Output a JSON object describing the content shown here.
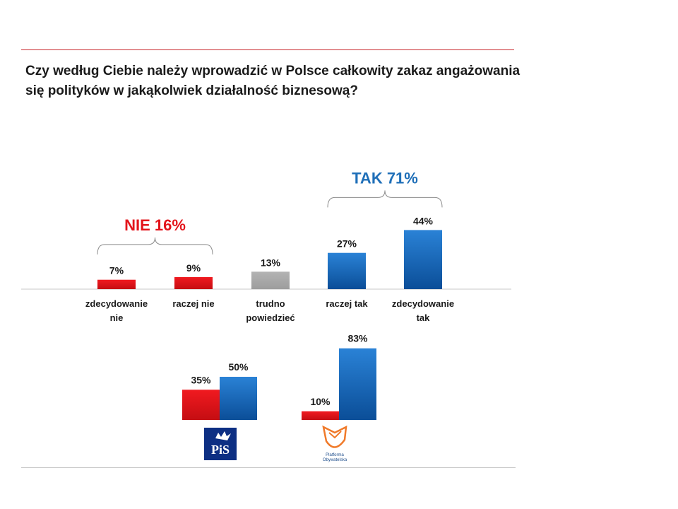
{
  "question": {
    "line1": "Czy według Ciebie należy wprowadzić w Polsce całkowity zakaz angażowania",
    "line2": "się polityków w jakąkolwiek działalność biznesową?"
  },
  "colors": {
    "red": "#e8141b",
    "red_dark": "#c50d12",
    "gray": "#a6a6a6",
    "blue": "#1f73c6",
    "blue_dark": "#0a4f9c",
    "rule_red": "#c9292e",
    "nie_text": "#e3141b",
    "tak_text": "#1f6fb8"
  },
  "chart_data": [
    {
      "type": "bar",
      "categories": [
        "zdecydowanie nie",
        "raczej nie",
        "trudno powiedzieć",
        "raczej tak",
        "zdecydowanie tak"
      ],
      "values": [
        7,
        9,
        13,
        27,
        44
      ],
      "value_labels": [
        "7%",
        "9%",
        "13%",
        "27%",
        "44%"
      ],
      "category_lines": [
        [
          "zdecydowanie",
          "nie"
        ],
        [
          "raczej nie"
        ],
        [
          "trudno",
          "powiedzieć"
        ],
        [
          "raczej tak"
        ],
        [
          "zdecydowanie",
          "tak"
        ]
      ],
      "bar_colors": [
        "red",
        "red",
        "gray",
        "blue",
        "blue"
      ],
      "groups": [
        {
          "label": "NIE 16%",
          "color": "nie_text",
          "categories": [
            "zdecydowanie nie",
            "raczej nie"
          ]
        },
        {
          "label": "TAK 71%",
          "color": "tak_text",
          "categories": [
            "raczej tak",
            "zdecydowanie tak"
          ]
        }
      ],
      "unit": "%"
    },
    {
      "type": "bar",
      "categories": [
        "PiS",
        "Platforma Obywatelska"
      ],
      "series": [
        {
          "values": [
            35,
            10
          ],
          "value_labels": [
            "35%",
            "10%"
          ],
          "color": "red"
        },
        {
          "values": [
            50,
            83
          ],
          "value_labels": [
            "50%",
            "83%"
          ],
          "color": "blue"
        }
      ],
      "logos": [
        {
          "party": "PiS",
          "text": "PiS"
        },
        {
          "party": "Platforma Obywatelska",
          "text_line1": "Platforma",
          "text_line2": "Obywatelska"
        }
      ],
      "unit": "%"
    }
  ]
}
